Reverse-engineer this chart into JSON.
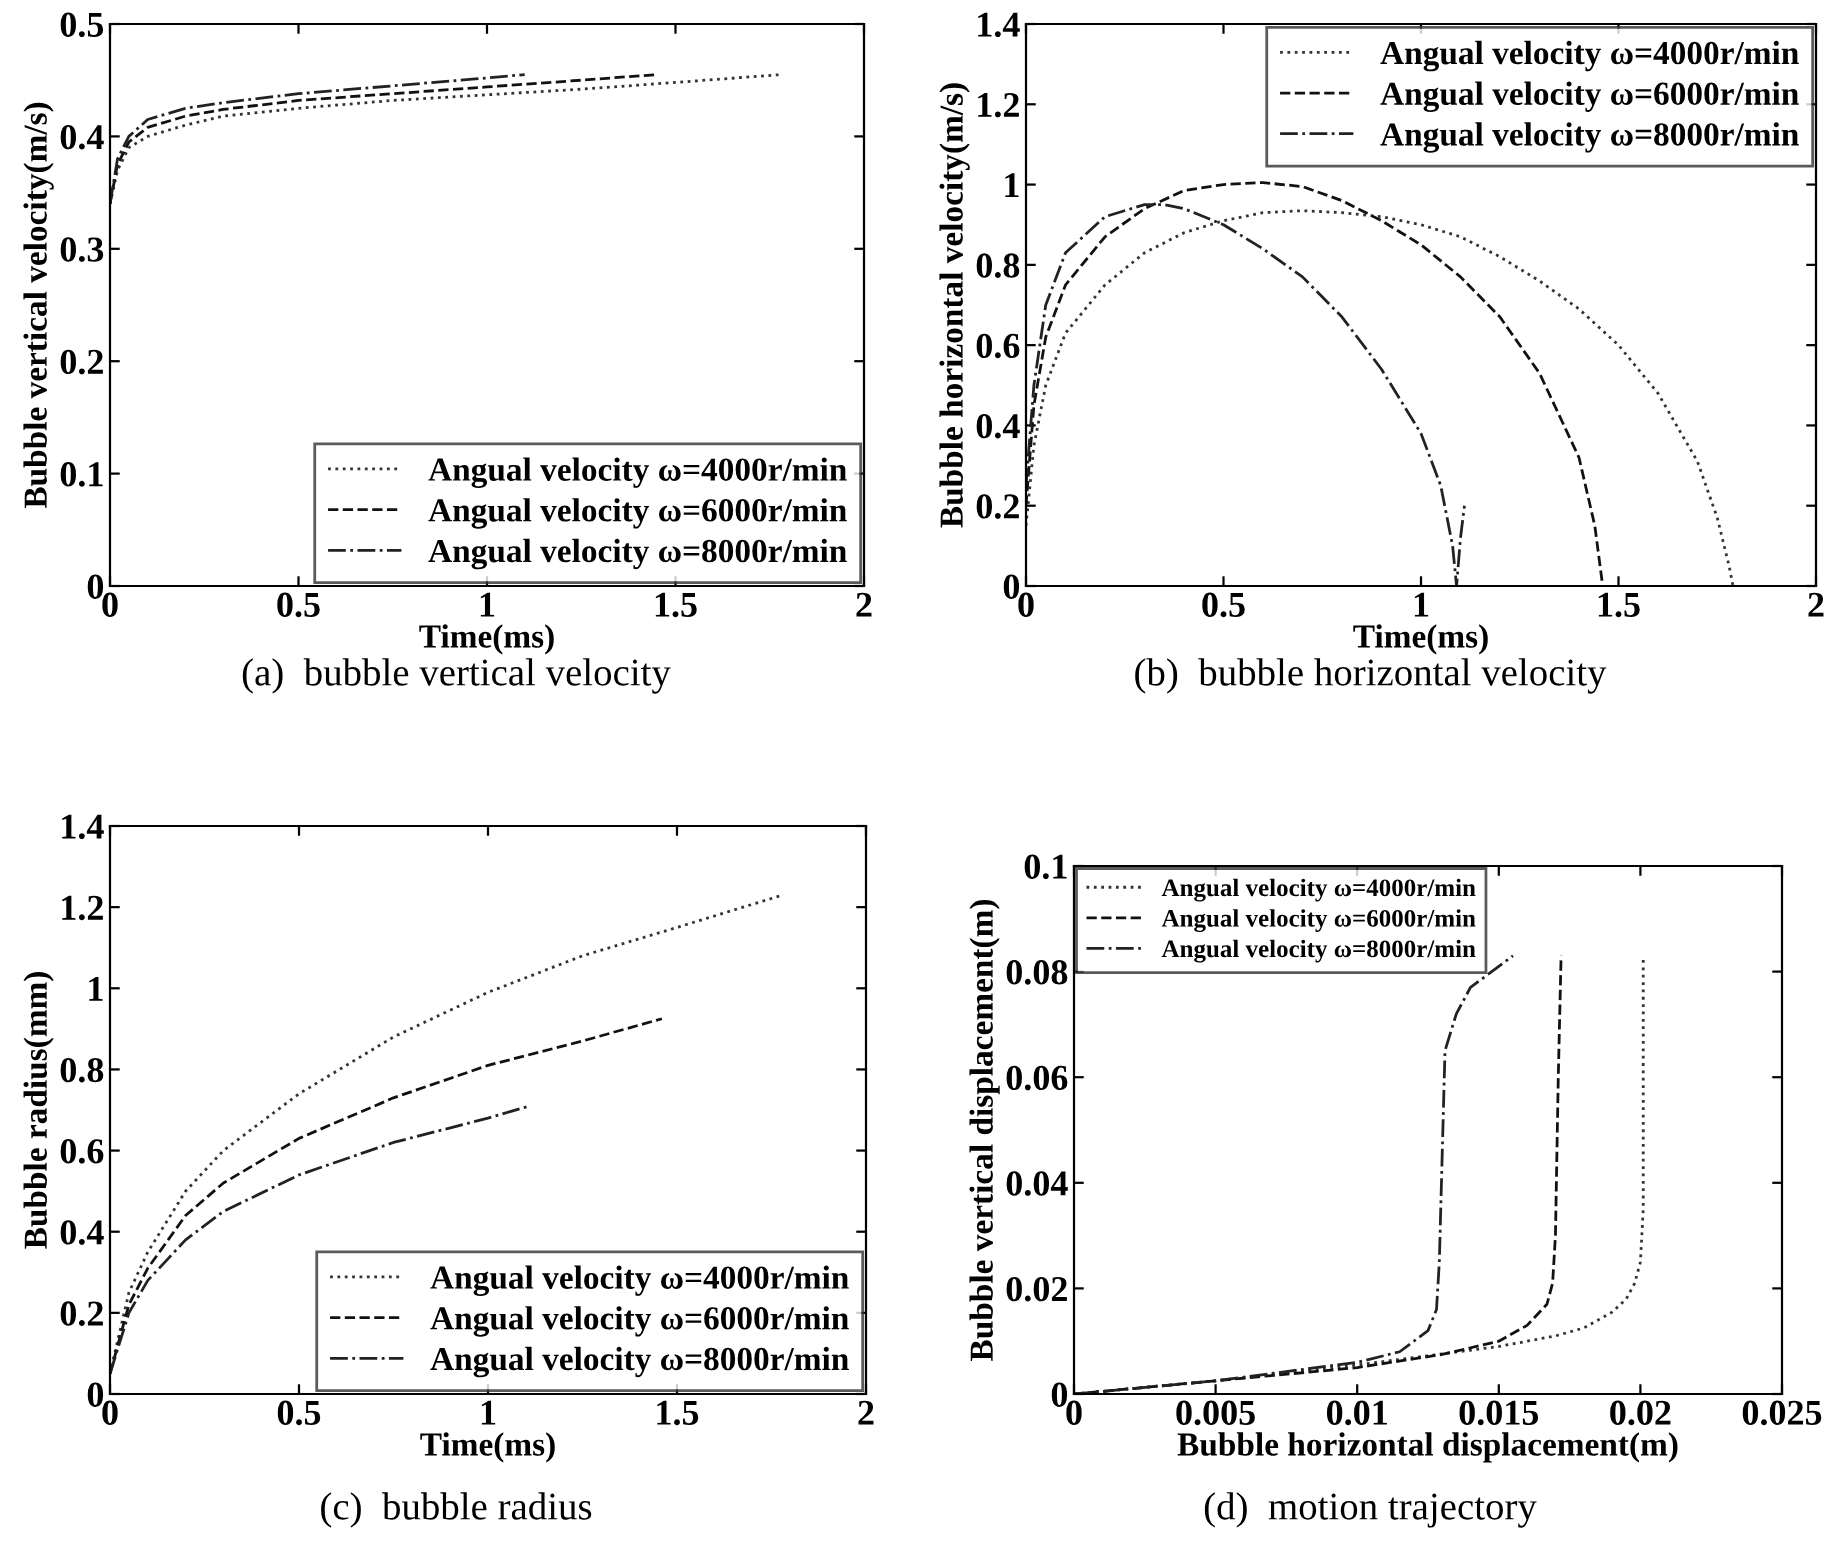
{
  "chart_data": [
    {
      "type": "line",
      "xlabel": "Time(ms)",
      "ylabel": "Bubble vertical velocity(m/s)",
      "xlim": [
        0,
        2
      ],
      "ylim": [
        0,
        0.5
      ],
      "xticks": [
        0,
        0.5,
        1,
        1.5,
        2
      ],
      "yticks": [
        0,
        0.1,
        0.2,
        0.3,
        0.4,
        0.5
      ],
      "grid": false,
      "legend": "bottom right",
      "annotations": [
        "(a)  bubble vertical velocity"
      ],
      "series": [
        {
          "name": "Angual velocity ω=4000r/min",
          "color": "#333333",
          "line_style": "dotted",
          "x": [
            0,
            0.02,
            0.05,
            0.1,
            0.2,
            0.3,
            0.5,
            0.75,
            1.0,
            1.25,
            1.5,
            1.78
          ],
          "values": [
            0.34,
            0.37,
            0.39,
            0.4,
            0.41,
            0.418,
            0.425,
            0.432,
            0.437,
            0.442,
            0.448,
            0.455
          ]
        },
        {
          "name": "Angual velocity ω=6000r/min",
          "color": "#111111",
          "line_style": "dashed",
          "x": [
            0,
            0.02,
            0.05,
            0.1,
            0.2,
            0.3,
            0.5,
            0.75,
            1.0,
            1.25,
            1.45
          ],
          "values": [
            0.34,
            0.375,
            0.395,
            0.408,
            0.418,
            0.424,
            0.432,
            0.438,
            0.444,
            0.45,
            0.455
          ]
        },
        {
          "name": "Angual velocity ω=8000r/min",
          "color": "#222222",
          "line_style": "dashdot",
          "x": [
            0,
            0.02,
            0.05,
            0.1,
            0.2,
            0.3,
            0.5,
            0.75,
            1.0,
            1.1
          ],
          "values": [
            0.34,
            0.38,
            0.4,
            0.415,
            0.425,
            0.43,
            0.438,
            0.445,
            0.452,
            0.455
          ]
        }
      ]
    },
    {
      "type": "line",
      "xlabel": "Time(ms)",
      "ylabel": "Bubble horizontal velocity(m/s)",
      "xlim": [
        0,
        2
      ],
      "ylim": [
        0,
        1.4
      ],
      "xticks": [
        0,
        0.5,
        1,
        1.5,
        2
      ],
      "yticks": [
        0,
        0.2,
        0.4,
        0.6,
        0.8,
        1,
        1.2,
        1.4
      ],
      "grid": false,
      "legend": "top right",
      "annotations": [
        "(b)  bubble horizontal velocity"
      ],
      "series": [
        {
          "name": "Angual velocity ω=4000r/min",
          "color": "#333333",
          "line_style": "dotted",
          "x": [
            0,
            0.02,
            0.05,
            0.1,
            0.2,
            0.3,
            0.4,
            0.5,
            0.6,
            0.7,
            0.8,
            0.9,
            1.0,
            1.1,
            1.2,
            1.3,
            1.4,
            1.5,
            1.6,
            1.7,
            1.75,
            1.78,
            1.79
          ],
          "values": [
            0.15,
            0.35,
            0.5,
            0.63,
            0.75,
            0.83,
            0.88,
            0.91,
            0.93,
            0.935,
            0.93,
            0.92,
            0.9,
            0.87,
            0.82,
            0.76,
            0.69,
            0.6,
            0.48,
            0.31,
            0.17,
            0.05,
            0
          ]
        },
        {
          "name": "Angual velocity ω=6000r/min",
          "color": "#111111",
          "line_style": "dashed",
          "x": [
            0,
            0.02,
            0.05,
            0.1,
            0.2,
            0.3,
            0.4,
            0.5,
            0.6,
            0.7,
            0.8,
            0.9,
            1.0,
            1.1,
            1.2,
            1.3,
            1.4,
            1.44,
            1.46
          ],
          "values": [
            0.2,
            0.45,
            0.62,
            0.75,
            0.87,
            0.94,
            0.985,
            1.0,
            1.005,
            0.995,
            0.96,
            0.91,
            0.85,
            0.77,
            0.67,
            0.53,
            0.32,
            0.15,
            0
          ]
        },
        {
          "name": "Angual velocity ω=8000r/min",
          "color": "#222222",
          "line_style": "dashdot",
          "x": [
            0,
            0.02,
            0.05,
            0.1,
            0.2,
            0.3,
            0.35,
            0.4,
            0.5,
            0.6,
            0.7,
            0.8,
            0.9,
            1.0,
            1.05,
            1.08,
            1.09,
            1.1,
            1.11
          ],
          "values": [
            0.25,
            0.5,
            0.7,
            0.83,
            0.92,
            0.95,
            0.95,
            0.94,
            0.9,
            0.84,
            0.77,
            0.67,
            0.54,
            0.38,
            0.25,
            0.1,
            0,
            0.12,
            0.2
          ]
        }
      ]
    },
    {
      "type": "line",
      "xlabel": "Time(ms)",
      "ylabel": "Bubble radius(mm)",
      "xlim": [
        0,
        2
      ],
      "ylim": [
        0,
        1.4
      ],
      "xticks": [
        0,
        0.5,
        1,
        1.5,
        2
      ],
      "yticks": [
        0,
        0.2,
        0.4,
        0.6,
        0.8,
        1,
        1.2,
        1.4
      ],
      "grid": false,
      "legend": "bottom right",
      "annotations": [
        "(c)  bubble radius"
      ],
      "series": [
        {
          "name": "Angual velocity ω=4000r/min",
          "color": "#333333",
          "line_style": "dotted",
          "x": [
            0,
            0.05,
            0.1,
            0.2,
            0.3,
            0.5,
            0.75,
            1.0,
            1.25,
            1.5,
            1.78
          ],
          "values": [
            0.05,
            0.25,
            0.35,
            0.5,
            0.6,
            0.74,
            0.88,
            0.99,
            1.08,
            1.15,
            1.23
          ]
        },
        {
          "name": "Angual velocity ω=6000r/min",
          "color": "#111111",
          "line_style": "dashed",
          "x": [
            0,
            0.05,
            0.1,
            0.2,
            0.3,
            0.5,
            0.75,
            1.0,
            1.25,
            1.46
          ],
          "values": [
            0.05,
            0.22,
            0.31,
            0.44,
            0.52,
            0.63,
            0.73,
            0.81,
            0.87,
            0.925
          ]
        },
        {
          "name": "Angual velocity ω=8000r/min",
          "color": "#222222",
          "line_style": "dashdot",
          "x": [
            0,
            0.05,
            0.1,
            0.2,
            0.3,
            0.5,
            0.75,
            1.0,
            1.11
          ],
          "values": [
            0.05,
            0.2,
            0.28,
            0.38,
            0.45,
            0.54,
            0.62,
            0.68,
            0.71
          ]
        }
      ]
    },
    {
      "type": "line",
      "xlabel": "Bubble horizontal displacement(m)",
      "ylabel": "Bubble vertical displacement(m)",
      "xlim": [
        0,
        0.025
      ],
      "ylim": [
        0,
        0.1
      ],
      "xticks": [
        0,
        0.005,
        0.01,
        0.015,
        0.02,
        0.025
      ],
      "yticks": [
        0,
        0.02,
        0.04,
        0.06,
        0.08,
        0.1
      ],
      "grid": false,
      "legend": "top left",
      "annotations": [
        "(d)  motion trajectory"
      ],
      "series": [
        {
          "name": "Angual velocity ω=4000r/min",
          "color": "#333333",
          "line_style": "dotted",
          "x": [
            0,
            0.005,
            0.01,
            0.015,
            0.017,
            0.018,
            0.019,
            0.0195,
            0.0198,
            0.02,
            0.0201,
            0.0201,
            0.0201
          ],
          "values": [
            0,
            0.0025,
            0.0055,
            0.009,
            0.011,
            0.0125,
            0.0155,
            0.018,
            0.021,
            0.025,
            0.035,
            0.06,
            0.083
          ]
        },
        {
          "name": "Angual velocity ω=6000r/min",
          "color": "#111111",
          "line_style": "dashed",
          "x": [
            0,
            0.005,
            0.01,
            0.013,
            0.015,
            0.016,
            0.0167,
            0.0169,
            0.017,
            0.0171,
            0.0172
          ],
          "values": [
            0,
            0.0025,
            0.005,
            0.0075,
            0.01,
            0.013,
            0.017,
            0.021,
            0.03,
            0.06,
            0.083
          ]
        },
        {
          "name": "Angual velocity ω=8000r/min",
          "color": "#222222",
          "line_style": "dashdot",
          "x": [
            0,
            0.005,
            0.01,
            0.0115,
            0.0125,
            0.0128,
            0.0129,
            0.013,
            0.0131,
            0.0135,
            0.014,
            0.015,
            0.0155
          ],
          "values": [
            0,
            0.0025,
            0.006,
            0.008,
            0.012,
            0.016,
            0.025,
            0.045,
            0.065,
            0.072,
            0.077,
            0.081,
            0.083
          ]
        }
      ]
    }
  ]
}
